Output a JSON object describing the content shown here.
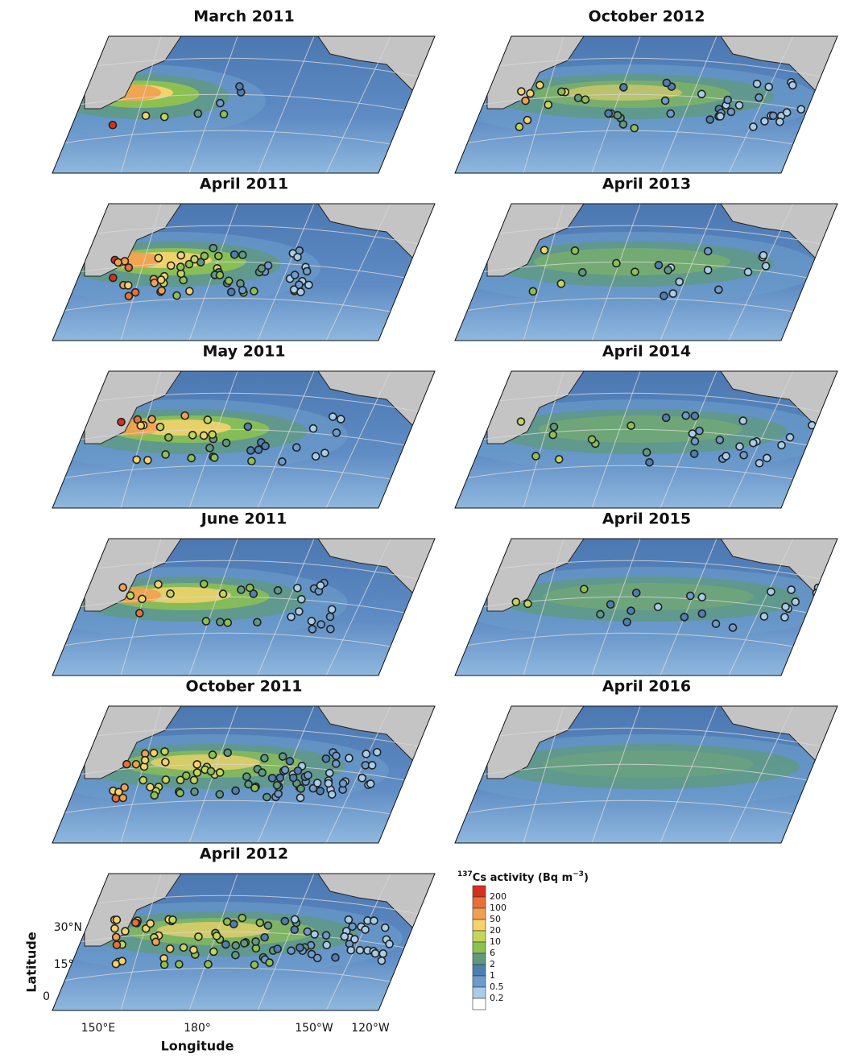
{
  "panels": [
    {
      "title": "March 2011"
    },
    {
      "title": "April 2011"
    },
    {
      "title": "May 2011"
    },
    {
      "title": "June 2011"
    },
    {
      "title": "October 2011"
    },
    {
      "title": "April 2012"
    },
    {
      "title": "October 2012"
    },
    {
      "title": "April 2013"
    },
    {
      "title": "April 2014"
    },
    {
      "title": "April 2015"
    },
    {
      "title": "April 2016"
    }
  ],
  "axes": {
    "ylabel": "Latitude",
    "xlabel": "Longitude",
    "yticks": [
      "30°N",
      "15°N",
      "0"
    ],
    "xticks": [
      "150°E",
      "180°",
      "150°W",
      "120°W"
    ]
  },
  "legend": {
    "isotope": "137",
    "title": "Cs activity (Bq m",
    "exponent": "−3",
    "close": ")",
    "levels": [
      200,
      100,
      50,
      20,
      10,
      6,
      2,
      1,
      0.5,
      0.2
    ],
    "colors": [
      "#d7301f",
      "#e8703a",
      "#f0a050",
      "#f3d36b",
      "#c3d65a",
      "#8cc152",
      "#5f9a80",
      "#4f7fb0",
      "#6d9ccc",
      "#a9cde8",
      "#ffffff"
    ]
  }
}
